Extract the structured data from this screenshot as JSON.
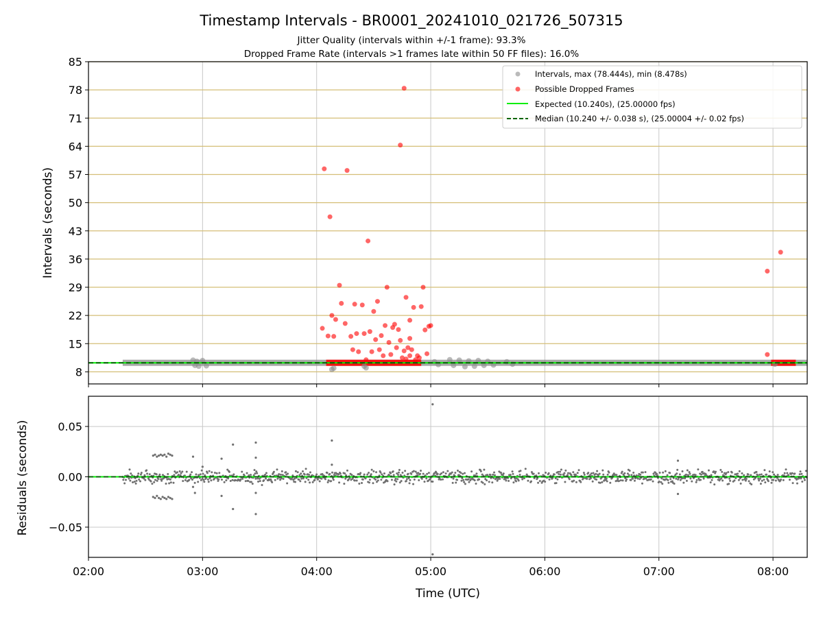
{
  "chart_data": [
    {
      "type": "scatter",
      "title": "Timestamp Intervals - BR0001_20241010_021726_507315",
      "subtitle_lines": [
        "Jitter Quality (intervals within +/-1 frame): 93.3%",
        "Dropped Frame Rate (intervals >1 frames late within 50 FF files): 16.0%"
      ],
      "xlabel": "",
      "ylabel": "Intervals (seconds)",
      "xlim": [
        "02:00",
        "08:18"
      ],
      "ylim": [
        5,
        85
      ],
      "yticks": [
        8,
        15,
        22,
        29,
        36,
        43,
        50,
        57,
        64,
        71,
        78,
        85
      ],
      "xticks": [
        "02:00",
        "03:00",
        "04:00",
        "05:00",
        "06:00",
        "07:00",
        "08:00"
      ],
      "grid": {
        "x": true,
        "y": true,
        "y_color": "#d4be76",
        "x_color": "#c8c8c8"
      },
      "legend_position": "top-right",
      "legend": [
        "Intervals, max (78.444s), min (8.478s)",
        "Possible Dropped Frames",
        "Expected (10.240s), (25.00000 fps)",
        "Median (10.240 +/- 0.038 s), (25.00004 +/- 0.02 fps)"
      ],
      "expected_interval": 10.24,
      "median_interval": 10.24,
      "interval_band": {
        "start": "02:18",
        "end": "08:18",
        "value": 10.24
      },
      "normal_points": [
        [
          "02:55",
          10.9
        ],
        [
          "02:56",
          9.6
        ],
        [
          "02:57",
          10.6
        ],
        [
          "02:58",
          9.4
        ],
        [
          "03:00",
          10.8
        ],
        [
          "03:02",
          9.5
        ],
        [
          "04:08",
          8.6
        ],
        [
          "04:09",
          8.9
        ],
        [
          "04:25",
          9.4
        ],
        [
          "04:26",
          9.0
        ],
        [
          "05:02",
          10.5
        ],
        [
          "05:04",
          9.8
        ],
        [
          "05:10",
          11.0
        ],
        [
          "05:12",
          9.6
        ],
        [
          "05:15",
          10.9
        ],
        [
          "05:18",
          9.3
        ],
        [
          "05:20",
          10.7
        ],
        [
          "05:23",
          9.4
        ],
        [
          "05:25",
          10.8
        ],
        [
          "05:28",
          9.6
        ],
        [
          "05:30",
          10.6
        ],
        [
          "05:33",
          9.7
        ],
        [
          "05:40",
          10.5
        ],
        [
          "05:43",
          9.9
        ],
        [
          "08:01",
          9.9
        ]
      ],
      "dropped_points": [
        [
          "04:03",
          18.8
        ],
        [
          "04:04",
          58.4
        ],
        [
          "04:06",
          16.9
        ],
        [
          "04:07",
          46.5
        ],
        [
          "04:08",
          22.0
        ],
        [
          "04:09",
          16.8
        ],
        [
          "04:10",
          21.0
        ],
        [
          "04:12",
          29.5
        ],
        [
          "04:13",
          25.0
        ],
        [
          "04:15",
          20.0
        ],
        [
          "04:16",
          58.0
        ],
        [
          "04:18",
          16.8
        ],
        [
          "04:19",
          13.5
        ],
        [
          "04:20",
          24.8
        ],
        [
          "04:21",
          17.5
        ],
        [
          "04:22",
          13.0
        ],
        [
          "04:24",
          24.6
        ],
        [
          "04:25",
          17.5
        ],
        [
          "04:26",
          11.0
        ],
        [
          "04:27",
          40.5
        ],
        [
          "04:28",
          18.0
        ],
        [
          "04:29",
          13.0
        ],
        [
          "04:30",
          23.0
        ],
        [
          "04:31",
          16.0
        ],
        [
          "04:32",
          25.5
        ],
        [
          "04:33",
          13.5
        ],
        [
          "04:34",
          17.0
        ],
        [
          "04:35",
          12.0
        ],
        [
          "04:36",
          19.5
        ],
        [
          "04:37",
          29.0
        ],
        [
          "04:38",
          15.3
        ],
        [
          "04:39",
          12.3
        ],
        [
          "04:40",
          19.0
        ],
        [
          "04:41",
          19.8
        ],
        [
          "04:42",
          14.0
        ],
        [
          "04:43",
          18.5
        ],
        [
          "04:44",
          15.8
        ],
        [
          "04:45",
          11.5
        ],
        [
          "04:46",
          13.2
        ],
        [
          "04:47",
          26.5
        ],
        [
          "04:48",
          14.0
        ],
        [
          "04:49",
          12.0
        ],
        [
          "04:50",
          13.5
        ],
        [
          "04:51",
          24.0
        ],
        [
          "04:52",
          11.0
        ],
        [
          "04:53",
          12.0
        ],
        [
          "04:54",
          11.5
        ],
        [
          "04:55",
          24.2
        ],
        [
          "04:56",
          29.0
        ],
        [
          "04:57",
          18.4
        ],
        [
          "04:58",
          12.5
        ],
        [
          "04:59",
          19.3
        ],
        [
          "05:00",
          19.5
        ],
        [
          "04:44",
          64.3
        ],
        [
          "04:46",
          78.4
        ],
        [
          "04:47",
          11.2
        ],
        [
          "04:49",
          16.3
        ],
        [
          "04:49",
          20.8
        ],
        [
          "07:57",
          33.0
        ],
        [
          "07:57",
          12.3
        ],
        [
          "08:04",
          37.7
        ]
      ],
      "dropped_baseline": [
        {
          "start": "04:05",
          "end": "04:55",
          "value": 10.24
        },
        {
          "start": "07:59",
          "end": "08:12",
          "value": 10.24
        }
      ]
    },
    {
      "type": "scatter",
      "title": "",
      "xlabel": "Time (UTC)",
      "ylabel": "Residuals (seconds)",
      "xlim": [
        "02:00",
        "08:18"
      ],
      "ylim": [
        -0.08,
        0.08
      ],
      "yticks": [
        -0.05,
        0.0,
        0.05
      ],
      "ytick_labels": [
        "−0.05",
        "0.00",
        "0.05"
      ],
      "xticks": [
        "02:00",
        "03:00",
        "04:00",
        "05:00",
        "06:00",
        "07:00",
        "08:00"
      ],
      "grid": {
        "x": true,
        "y": true,
        "color": "#c8c8c8"
      },
      "zero_line": 0.0,
      "residual_range": {
        "start": "02:18",
        "end": "08:18",
        "typical_spread": 0.006
      },
      "outliers": [
        [
          "02:34",
          0.021
        ],
        [
          "02:35",
          0.022
        ],
        [
          "02:36",
          0.02
        ],
        [
          "02:37",
          0.021
        ],
        [
          "02:38",
          0.022
        ],
        [
          "02:39",
          0.021
        ],
        [
          "02:40",
          0.022
        ],
        [
          "02:41",
          0.02
        ],
        [
          "02:42",
          0.023
        ],
        [
          "02:43",
          0.022
        ],
        [
          "02:44",
          0.021
        ],
        [
          "02:34",
          -0.02
        ],
        [
          "02:35",
          -0.021
        ],
        [
          "02:36",
          -0.019
        ],
        [
          "02:37",
          -0.021
        ],
        [
          "02:38",
          -0.022
        ],
        [
          "02:39",
          -0.02
        ],
        [
          "02:40",
          -0.021
        ],
        [
          "02:41",
          -0.022
        ],
        [
          "02:42",
          -0.02
        ],
        [
          "02:43",
          -0.021
        ],
        [
          "02:44",
          -0.022
        ],
        [
          "02:55",
          0.02
        ],
        [
          "02:56",
          -0.016
        ],
        [
          "03:10",
          0.018
        ],
        [
          "03:10",
          -0.019
        ],
        [
          "03:16",
          0.032
        ],
        [
          "03:16",
          -0.032
        ],
        [
          "03:28",
          0.034
        ],
        [
          "03:28",
          0.019
        ],
        [
          "03:28",
          -0.016
        ],
        [
          "03:28",
          -0.037
        ],
        [
          "04:08",
          0.036
        ],
        [
          "04:08",
          0.012
        ],
        [
          "05:01",
          0.072
        ],
        [
          "05:01",
          -0.077
        ],
        [
          "07:10",
          0.016
        ],
        [
          "07:10",
          -0.017
        ],
        [
          "02:55",
          -0.01
        ],
        [
          "03:00",
          0.01
        ]
      ]
    }
  ]
}
